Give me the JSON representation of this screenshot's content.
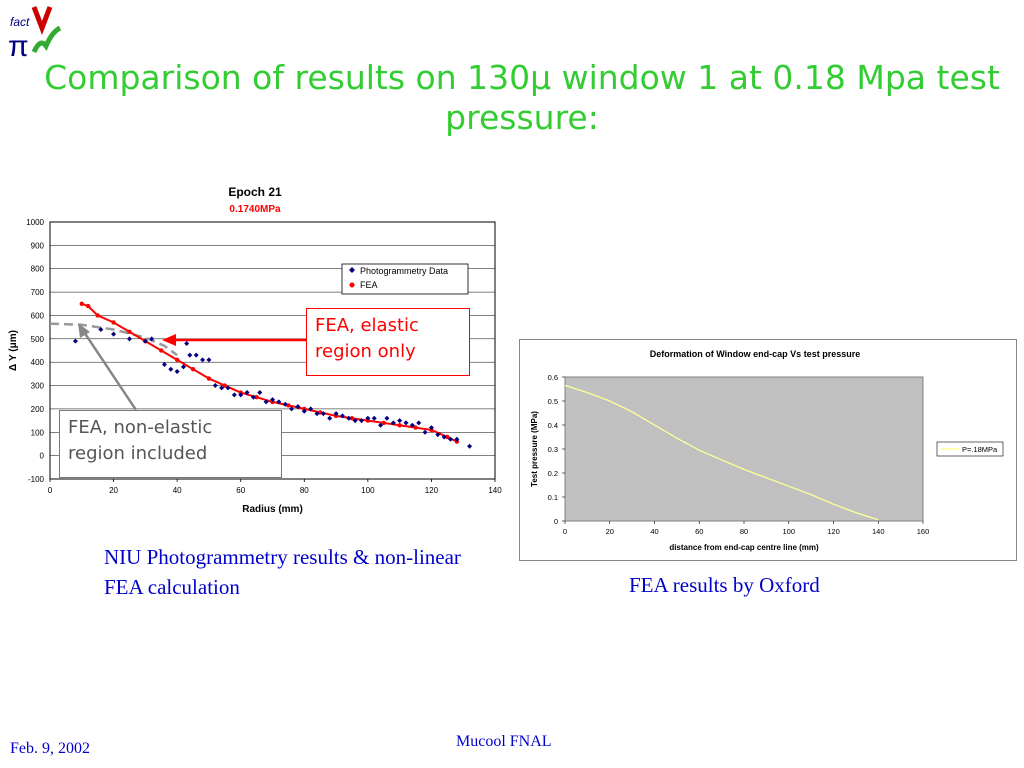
{
  "logo": {
    "top": "fact",
    "letters": "πμν"
  },
  "title": "Comparison of results on 130μ window 1 at 0.18 Mpa test pressure:",
  "callouts": {
    "elastic": "FEA, elastic region only",
    "nonelastic": "FEA, non-elastic region included"
  },
  "captions": {
    "left": "NIU Photogrammetry results & non-linear FEA calculation",
    "right": "FEA results by Oxford"
  },
  "footer": {
    "date": "Feb. 9, 2002",
    "center": "Mucool FNAL"
  },
  "colors": {
    "title": "#33cc33",
    "caption": "#0000cc",
    "fea": "#ff0000",
    "photo": "#000080",
    "oxford_line": "#ffff99",
    "oxford_plot_bg": "#c0c0c0"
  },
  "chart_data": [
    {
      "type": "scatter",
      "title": "Epoch 21",
      "subtitle": "0.1740MPa",
      "xlabel": "Radius (mm)",
      "ylabel": "Δ Y (μm)",
      "xlim": [
        0,
        140
      ],
      "ylim": [
        -100,
        1000
      ],
      "xticks": [
        "0",
        "20",
        "40",
        "60",
        "80",
        "100",
        "120",
        "140"
      ],
      "yticks": [
        "-100",
        "0",
        "100",
        "200",
        "300",
        "400",
        "500",
        "600",
        "700",
        "800",
        "900",
        "1000"
      ],
      "grid": true,
      "legend": "top-right",
      "series": [
        {
          "name": "Photogrammetry Data",
          "marker": "diamond",
          "x": [
            8,
            16,
            20,
            25,
            30,
            32,
            36,
            38,
            40,
            42,
            43,
            44,
            46,
            48,
            50,
            52,
            54,
            56,
            58,
            60,
            62,
            64,
            66,
            68,
            70,
            72,
            74,
            76,
            78,
            80,
            82,
            84,
            86,
            88,
            90,
            92,
            94,
            96,
            98,
            100,
            102,
            104,
            106,
            108,
            110,
            112,
            114,
            116,
            118,
            120,
            122,
            124,
            126,
            128,
            132
          ],
          "y": [
            490,
            540,
            520,
            500,
            490,
            500,
            390,
            370,
            360,
            380,
            480,
            430,
            430,
            410,
            410,
            300,
            290,
            290,
            260,
            260,
            270,
            250,
            270,
            230,
            240,
            230,
            220,
            200,
            210,
            190,
            200,
            180,
            180,
            160,
            180,
            170,
            160,
            150,
            150,
            160,
            160,
            130,
            160,
            140,
            150,
            140,
            130,
            140,
            100,
            120,
            90,
            80,
            70,
            70,
            40
          ]
        },
        {
          "name": "FEA",
          "marker": "circle",
          "x": [
            10,
            12,
            15,
            20,
            25,
            30,
            35,
            40,
            45,
            50,
            55,
            60,
            65,
            70,
            75,
            80,
            85,
            90,
            95,
            100,
            105,
            110,
            115,
            120,
            125,
            128
          ],
          "y": [
            650,
            640,
            600,
            570,
            530,
            490,
            450,
            410,
            370,
            330,
            300,
            270,
            250,
            230,
            215,
            200,
            185,
            170,
            160,
            150,
            140,
            130,
            120,
            110,
            80,
            60
          ]
        },
        {
          "name": "",
          "style": "dashed",
          "x": [
            0,
            10,
            20,
            30,
            36,
            40
          ],
          "y": [
            565,
            560,
            540,
            505,
            470,
            430
          ]
        }
      ]
    },
    {
      "type": "line",
      "title": "Deformation of Window end-cap  Vs test pressure",
      "xlabel": "distance from end-cap centre line (mm)",
      "ylabel": "Test pressure (MPa)",
      "xlim": [
        0,
        160
      ],
      "ylim": [
        0,
        0.6
      ],
      "xticks": [
        "0",
        "20",
        "40",
        "60",
        "80",
        "100",
        "120",
        "140",
        "160"
      ],
      "yticks": [
        "0",
        "0.1",
        "0.2",
        "0.3",
        "0.4",
        "0.5",
        "0.6"
      ],
      "legend": "right",
      "series": [
        {
          "name": "P=.18MPa",
          "x": [
            0,
            10,
            20,
            30,
            40,
            50,
            60,
            70,
            80,
            90,
            100,
            110,
            120,
            130,
            140
          ],
          "y": [
            0.565,
            0.535,
            0.5,
            0.455,
            0.4,
            0.345,
            0.295,
            0.255,
            0.215,
            0.18,
            0.145,
            0.11,
            0.07,
            0.035,
            0.005
          ]
        }
      ]
    }
  ]
}
